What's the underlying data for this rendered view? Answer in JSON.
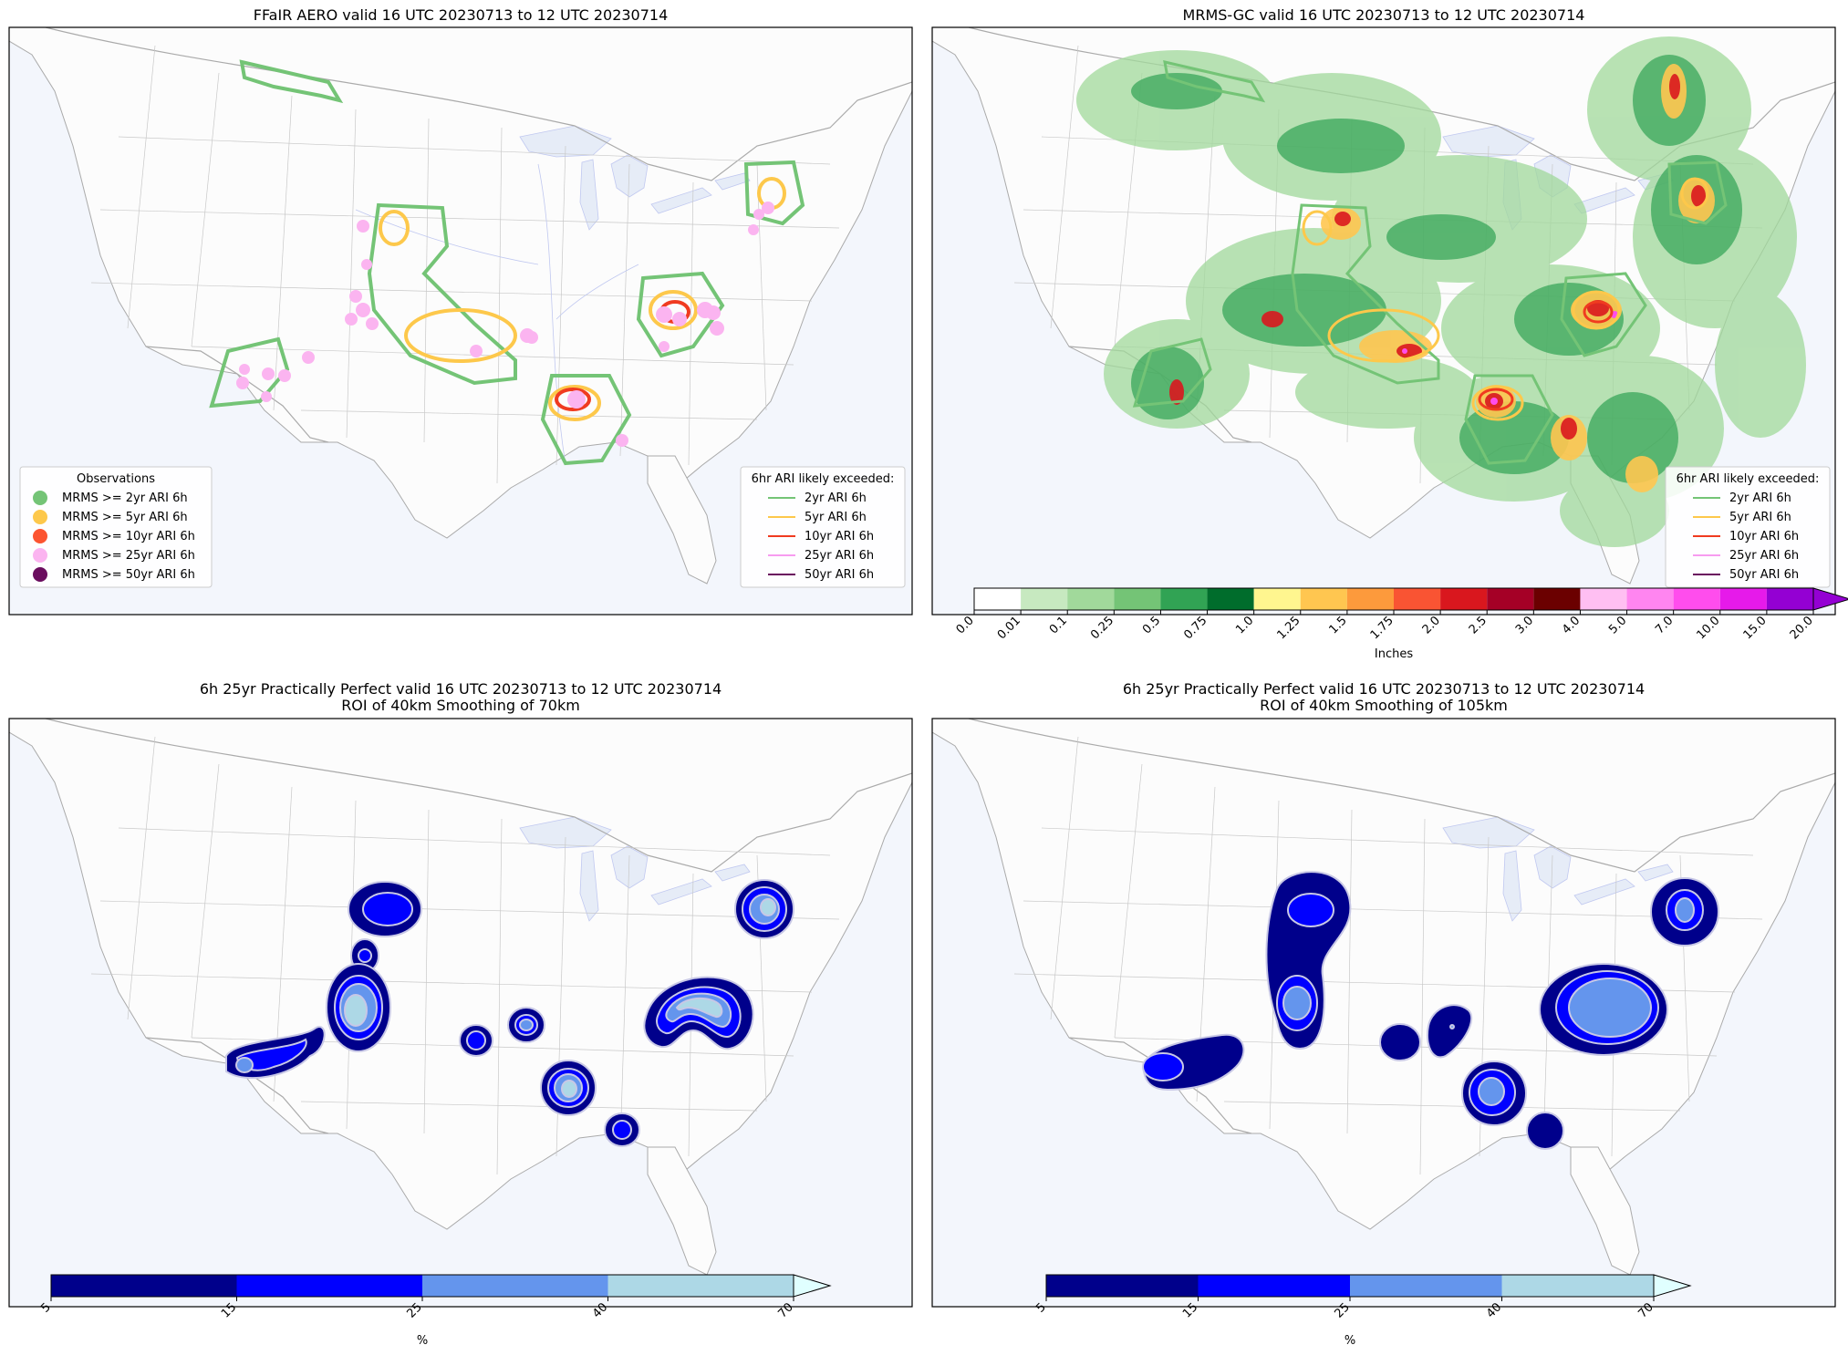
{
  "panels": [
    {
      "title_lines": [
        "FFaIR AERO valid 16 UTC 20230713 to 12 UTC 20230714"
      ],
      "legends": [
        {
          "title": "Observations",
          "kind": "marker",
          "items": [
            {
              "label": "MRMS >= 2yr ARI 6h",
              "color": "#74c476"
            },
            {
              "label": "MRMS >= 5yr ARI 6h",
              "color": "#fdc84b"
            },
            {
              "label": "MRMS >= 10yr ARI 6h",
              "color": "#fc5430"
            },
            {
              "label": "MRMS >= 25yr ARI 6h",
              "color": "#fbb4f0"
            },
            {
              "label": "MRMS >= 50yr ARI 6h",
              "color": "#6a0d5e"
            }
          ]
        },
        {
          "title": "6hr ARI likely exceeded:",
          "kind": "line",
          "items": [
            {
              "label": "2yr ARI 6h",
              "color": "#74c476"
            },
            {
              "label": "5yr ARI 6h",
              "color": "#fdc84b"
            },
            {
              "label": "10yr ARI 6h",
              "color": "#f03b20"
            },
            {
              "label": "25yr ARI 6h",
              "color": "#f79cf0"
            },
            {
              "label": "50yr ARI 6h",
              "color": "#6a0d5e"
            }
          ]
        }
      ]
    },
    {
      "title_lines": [
        "MRMS-GC valid 16 UTC 20230713 to 12 UTC 20230714"
      ],
      "legends": [
        {
          "title": "6hr ARI likely exceeded:",
          "kind": "line",
          "items": [
            {
              "label": "2yr ARI 6h",
              "color": "#74c476"
            },
            {
              "label": "5yr ARI 6h",
              "color": "#fdc84b"
            },
            {
              "label": "10yr ARI 6h",
              "color": "#f03b20"
            },
            {
              "label": "25yr ARI 6h",
              "color": "#f79cf0"
            },
            {
              "label": "50yr ARI 6h",
              "color": "#6a0d5e"
            }
          ]
        }
      ],
      "colorbar": {
        "label": "Inches",
        "ticks": [
          "0.0",
          "0.01",
          "0.1",
          "0.25",
          "0.5",
          "0.75",
          "1.0",
          "1.25",
          "1.5",
          "1.75",
          "2.0",
          "2.5",
          "3.0",
          "4.0",
          "5.0",
          "7.0",
          "10.0",
          "15.0",
          "20.0"
        ],
        "colors": [
          "#ffffff",
          "#c7e9c0",
          "#a1d99b",
          "#74c476",
          "#31a354",
          "#006d2c",
          "#fff68f",
          "#ffc650",
          "#fd9a3c",
          "#f95433",
          "#d9171e",
          "#a50026",
          "#6b0000",
          "#ffbff2",
          "#ff85f0",
          "#ff4ded",
          "#e61aea",
          "#9400d3"
        ],
        "extend_color": "#9400d3"
      }
    },
    {
      "title_lines": [
        "6h 25yr Practically Perfect valid 16 UTC 20230713 to 12 UTC 20230714",
        "ROI of 40km Smoothing of 70km"
      ],
      "legends": [],
      "colorbar": {
        "label": "%",
        "ticks": [
          "5",
          "15",
          "25",
          "40",
          "70"
        ],
        "colors": [
          "#00008b",
          "#0000ff",
          "#6495ed",
          "#add8e6"
        ],
        "extend_color": "#e0ffff"
      }
    },
    {
      "title_lines": [
        "6h 25yr Practically Perfect valid 16 UTC 20230713 to 12 UTC 20230714",
        "ROI of 40km Smoothing of 105km"
      ],
      "legends": [],
      "colorbar": {
        "label": "%",
        "ticks": [
          "5",
          "15",
          "25",
          "40",
          "70"
        ],
        "colors": [
          "#00008b",
          "#0000ff",
          "#6495ed",
          "#add8e6"
        ],
        "extend_color": "#e0ffff"
      }
    }
  ],
  "colors": {
    "land": "#fcfcfc",
    "ocean": "#f3f6fc",
    "lake": "#e6ecf7",
    "border": "#aaaaaa",
    "state": "#c8c8c8",
    "river": "#c0c8f0"
  }
}
